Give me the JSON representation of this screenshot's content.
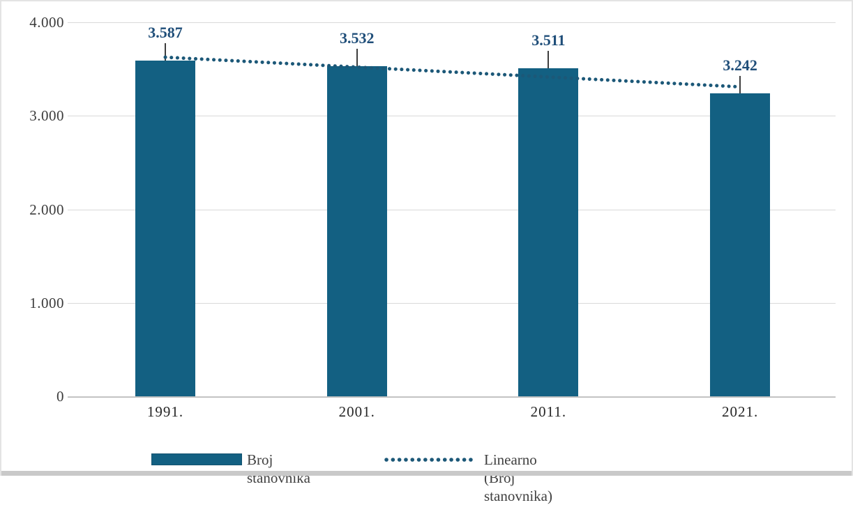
{
  "colors": {
    "bar": "#136082",
    "trendline": "#1c5878",
    "data_label": "#1f4e79",
    "gridline": "#d9d9d9",
    "axis_text": "#3b3b3b"
  },
  "legend": {
    "bar_series_label": "Broj stanovnika",
    "trend_series_label": "Linearno (Broj stanovnika)"
  },
  "chart_data": {
    "type": "bar",
    "title": "",
    "xlabel": "",
    "ylabel": "",
    "categories": [
      "1991.",
      "2001.",
      "2011.",
      "2021."
    ],
    "series": [
      {
        "name": "Broj stanovnika",
        "type": "bar",
        "values": [
          3587,
          3532,
          3511,
          3242
        ],
        "value_labels": [
          "3.587",
          "3.532",
          "3.511",
          "3.242"
        ]
      },
      {
        "name": "Linearno (Broj stanovnika)",
        "type": "linear-trendline-dotted",
        "fit_endpoint_values": [
          3626.4,
          3309.6
        ]
      }
    ],
    "y_ticks": [
      {
        "label": "4.000",
        "value": 4000
      },
      {
        "label": "3.000",
        "value": 3000
      },
      {
        "label": "2.000",
        "value": 2000
      },
      {
        "label": "1.000",
        "value": 1000
      },
      {
        "label": "0",
        "value": 0
      }
    ],
    "ylim": [
      0,
      4000
    ],
    "grid": true,
    "legend_position": "bottom"
  }
}
